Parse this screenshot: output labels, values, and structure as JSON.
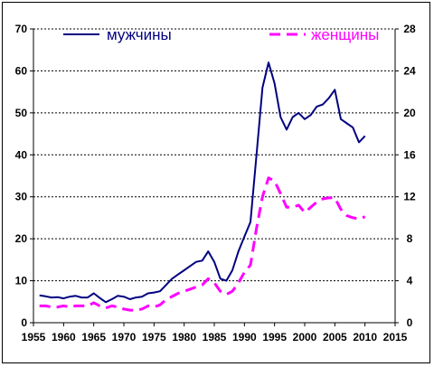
{
  "chart_data": {
    "type": "line",
    "x_ticks": [
      1955,
      1960,
      1965,
      1970,
      1975,
      1980,
      1985,
      1990,
      1995,
      2000,
      2005,
      2010,
      2015
    ],
    "y_left_ticks": [
      0,
      10,
      20,
      30,
      40,
      50,
      60,
      70
    ],
    "y_right_ticks": [
      0,
      4,
      8,
      12,
      16,
      20,
      24,
      28
    ],
    "xlim": [
      1955,
      2015
    ],
    "ylim_left": [
      0,
      70
    ],
    "ylim_right": [
      0,
      28
    ],
    "grid": "horizontal dashed",
    "legend": "top",
    "series": [
      {
        "name": "мужчины",
        "axis": "left",
        "color": "#000080",
        "style": "solid",
        "x": [
          1956,
          1957,
          1958,
          1959,
          1960,
          1961,
          1962,
          1963,
          1964,
          1965,
          1966,
          1967,
          1968,
          1969,
          1970,
          1971,
          1972,
          1973,
          1974,
          1975,
          1976,
          1977,
          1978,
          1979,
          1980,
          1981,
          1982,
          1983,
          1984,
          1985,
          1986,
          1987,
          1988,
          1989,
          1990,
          1991,
          1992,
          1993,
          1994,
          1995,
          1996,
          1997,
          1998,
          1999,
          2000,
          2001,
          2002,
          2003,
          2004,
          2005,
          2006,
          2007,
          2008,
          2009,
          2010
        ],
        "values": [
          6.5,
          6.3,
          6.0,
          6.1,
          5.8,
          6.2,
          6.4,
          6.0,
          6.0,
          7.0,
          5.9,
          4.9,
          5.6,
          6.4,
          6.2,
          5.6,
          6.0,
          6.2,
          7.0,
          7.2,
          7.5,
          9.0,
          10.5,
          11.5,
          12.5,
          13.5,
          14.5,
          14.8,
          17.0,
          14.5,
          10.5,
          10.0,
          12.5,
          17.0,
          20.5,
          24.0,
          40.0,
          56.0,
          62.0,
          57.0,
          49.0,
          46.0,
          49.0,
          50.0,
          48.5,
          49.5,
          51.5,
          52.0,
          53.5,
          55.5,
          48.5,
          47.5,
          46.5,
          43.0,
          44.5
        ]
      },
      {
        "name": "женщины",
        "axis": "right",
        "color": "#ff00ff",
        "style": "dashed",
        "x": [
          1956,
          1957,
          1958,
          1959,
          1960,
          1961,
          1962,
          1963,
          1964,
          1965,
          1966,
          1967,
          1968,
          1969,
          1970,
          1971,
          1972,
          1973,
          1974,
          1975,
          1976,
          1977,
          1978,
          1979,
          1980,
          1981,
          1982,
          1983,
          1984,
          1985,
          1986,
          1987,
          1988,
          1989,
          1990,
          1991,
          1992,
          1993,
          1994,
          1995,
          1996,
          1997,
          1998,
          1999,
          2000,
          2001,
          2002,
          2003,
          2004,
          2005,
          2006,
          2007,
          2008,
          2009,
          2010
        ],
        "values": [
          1.6,
          1.6,
          1.5,
          1.5,
          1.6,
          1.5,
          1.6,
          1.6,
          1.6,
          1.9,
          1.6,
          1.4,
          1.6,
          1.5,
          1.3,
          1.2,
          1.2,
          1.3,
          1.6,
          1.5,
          1.7,
          2.2,
          2.5,
          2.8,
          3.0,
          3.2,
          3.4,
          3.6,
          4.2,
          3.8,
          3.0,
          2.7,
          3.0,
          3.8,
          4.8,
          5.5,
          9.0,
          12.0,
          13.8,
          13.5,
          12.3,
          11.0,
          11.0,
          11.2,
          10.5,
          11.0,
          11.5,
          11.8,
          11.9,
          11.9,
          10.8,
          10.2,
          10.0,
          9.9,
          10.1
        ]
      }
    ]
  }
}
